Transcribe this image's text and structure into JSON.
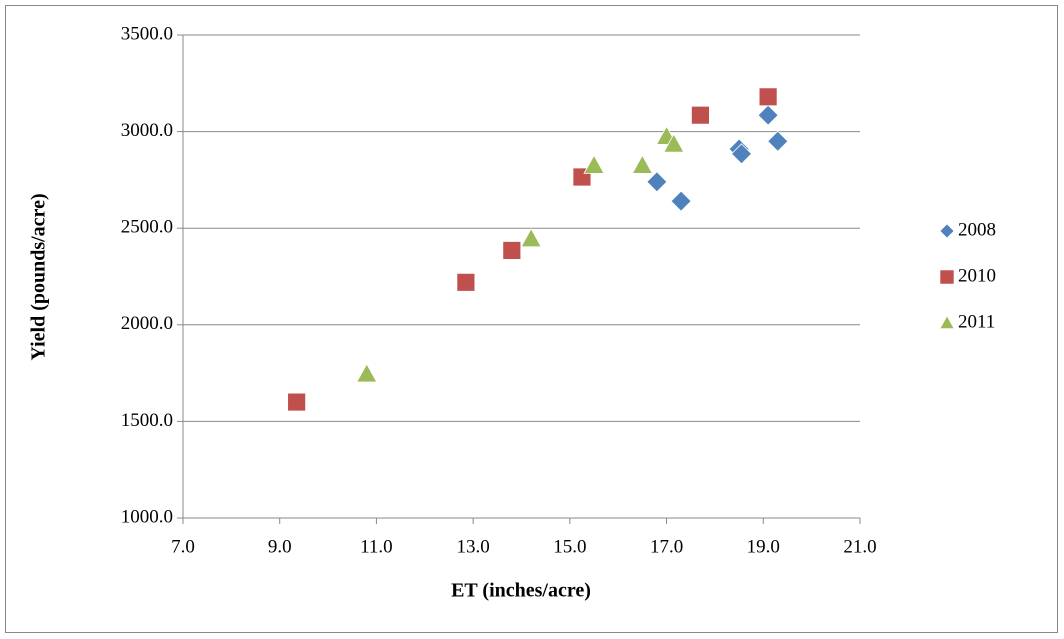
{
  "chart_data": {
    "type": "scatter",
    "x_label": "ET (inches/acre)",
    "y_label": "Yield (pounds/acre)",
    "xlim": [
      7,
      21
    ],
    "xticks": [
      {
        "value": 7,
        "label": "7.0"
      },
      {
        "value": 9,
        "label": "9.0"
      },
      {
        "value": 11,
        "label": "11.0"
      },
      {
        "value": 13,
        "label": "13.0"
      },
      {
        "value": 15,
        "label": "15.0"
      },
      {
        "value": 17,
        "label": "17.0"
      },
      {
        "value": 19,
        "label": "19.0"
      },
      {
        "value": 21,
        "label": "21.0"
      }
    ],
    "ylim": [
      1000,
      3500
    ],
    "yticks": [
      {
        "value": 1000,
        "label": "1000.0"
      },
      {
        "value": 1500,
        "label": "1500.0"
      },
      {
        "value": 2000,
        "label": "2000.0"
      },
      {
        "value": 2500,
        "label": "2500.0"
      },
      {
        "value": 3000,
        "label": "3000.0"
      },
      {
        "value": 3500,
        "label": "3500.0"
      }
    ],
    "grid": true,
    "legend": "right",
    "series": [
      {
        "name": "2008",
        "color": "#4f81bd",
        "marker": "diamond",
        "x": [
          16.8,
          17.3,
          18.5,
          18.55,
          19.1,
          19.3
        ],
        "values": [
          2740,
          2640,
          2910,
          2885,
          3085,
          2950
        ]
      },
      {
        "name": "2010",
        "color": "#c0504d",
        "marker": "square",
        "x": [
          9.35,
          12.85,
          13.8,
          15.25,
          17.7,
          19.1
        ],
        "values": [
          1600,
          2220,
          2385,
          2765,
          3085,
          3180
        ]
      },
      {
        "name": "2011",
        "color": "#9bbb59",
        "marker": "triangle",
        "x": [
          10.8,
          14.2,
          15.5,
          16.5,
          17.0,
          17.15
        ],
        "values": [
          1745,
          2445,
          2825,
          2825,
          2975,
          2935
        ]
      }
    ]
  }
}
